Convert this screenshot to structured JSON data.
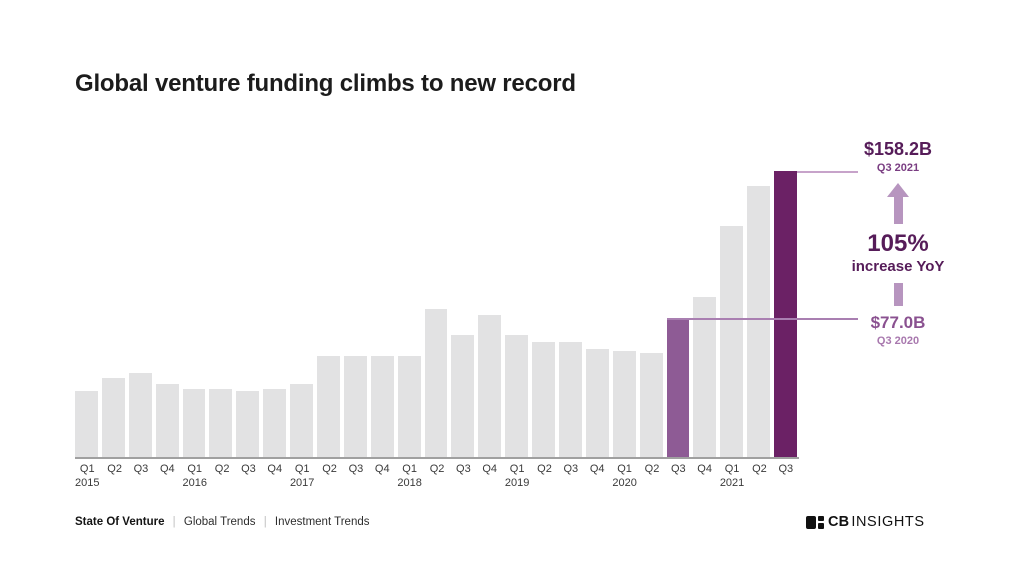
{
  "header": {
    "title": "Global venture funding climbs to new record"
  },
  "chart_data": {
    "type": "bar",
    "title": "Global venture funding climbs to new record",
    "unit": "USD billions",
    "categories": [
      "Q1 2015",
      "Q2 2015",
      "Q3 2015",
      "Q4 2015",
      "Q1 2016",
      "Q2 2016",
      "Q3 2016",
      "Q4 2016",
      "Q1 2017",
      "Q2 2017",
      "Q3 2017",
      "Q4 2017",
      "Q1 2018",
      "Q2 2018",
      "Q3 2018",
      "Q4 2018",
      "Q1 2019",
      "Q2 2019",
      "Q3 2019",
      "Q4 2019",
      "Q1 2020",
      "Q2 2020",
      "Q3 2020",
      "Q4 2020",
      "Q1 2021",
      "Q2 2021",
      "Q3 2021"
    ],
    "values": [
      37,
      44,
      47,
      41,
      38,
      38,
      37,
      38,
      41,
      56,
      56,
      56,
      56,
      82,
      68,
      79,
      68,
      64,
      64,
      60,
      59,
      58,
      77,
      89,
      128,
      150,
      158.2
    ],
    "ylim": [
      0,
      160
    ],
    "grid": false,
    "legend": false,
    "highlight_mid_index": 22,
    "highlight_dark_index": 26,
    "labeled_points": [
      {
        "category": "Q3 2020",
        "value": 77.0,
        "label": "$77.0B"
      },
      {
        "category": "Q3 2021",
        "value": 158.2,
        "label": "$158.2B"
      }
    ],
    "yoy_change": "105% increase YoY"
  },
  "annotation": {
    "peak_value": "$158.2B",
    "peak_period": "Q3 2021",
    "change_pct": "105%",
    "change_label": "increase YoY",
    "base_value": "$77.0B",
    "base_period": "Q3 2020"
  },
  "footer": {
    "brand": "State Of Venture",
    "separator": "|",
    "links": [
      {
        "label": "Global Trends"
      },
      {
        "label": "Investment Trends"
      }
    ],
    "logo": {
      "cb": "CB",
      "insights": "INSIGHTS"
    }
  },
  "colors": {
    "bar_default": "#e2e2e3",
    "bar_mid": "#8e5b95",
    "bar_dark": "#6b2165",
    "text_dark_purple": "#561c59",
    "text_mid_purple": "#8a5190",
    "text_light_purple": "#a878ae",
    "period_purple": "#7a3d82",
    "arrow_purple": "#b795bf",
    "line_top": "#c7a3ca",
    "line_base": "#a97fb1",
    "axis_line": "#a0a0a0",
    "axis_text": "#3a3a3a",
    "title_color": "#1c1c1c",
    "footer_text": "#2e2e2e",
    "logo_black": "#111111"
  }
}
